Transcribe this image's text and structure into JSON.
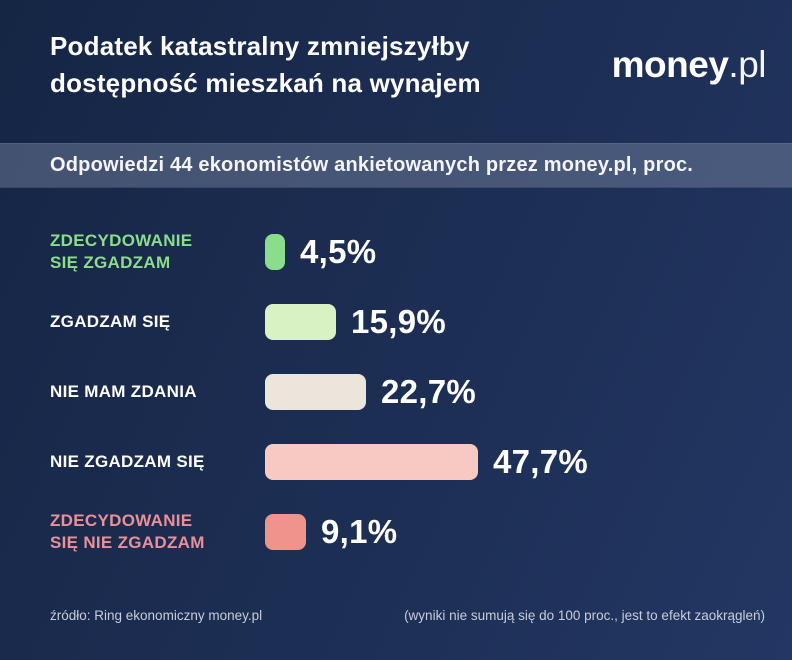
{
  "header": {
    "title": "Podatek katastralny zmniejszyłby dostępność mieszkań na wynajem",
    "logo": {
      "bold": "money",
      "light": ".pl"
    }
  },
  "subtitle": "Odpowiedzi 44 ekonomistów ankietowanych przez money.pl, proc.",
  "chart_data": {
    "type": "bar",
    "orientation": "horizontal",
    "title": "Podatek katastralny zmniejszyłby dostępność mieszkań na wynajem",
    "subtitle": "Odpowiedzi 44 ekonomistów ankietowanych przez money.pl, proc.",
    "unit": "proc.",
    "xlim": [
      0,
      50
    ],
    "grid": false,
    "legend": false,
    "categories": [
      "ZDECYDOWANIE SIĘ ZGADZAM",
      "ZGADZAM SIĘ",
      "NIE MAM ZDANIA",
      "NIE ZGADZAM SIĘ",
      "ZDECYDOWANIE SIĘ NIE ZGADZAM"
    ],
    "label_lines": [
      [
        "ZDECYDOWANIE",
        "SIĘ ZGADZAM"
      ],
      [
        "ZGADZAM SIĘ"
      ],
      [
        "NIE MAM ZDANIA"
      ],
      [
        "NIE ZGADZAM SIĘ"
      ],
      [
        "ZDECYDOWANIE",
        "SIĘ NIE ZGADZAM"
      ]
    ],
    "values": [
      4.5,
      15.9,
      22.7,
      47.7,
      9.1
    ],
    "value_labels": [
      "4,5%",
      "15,9%",
      "22,7%",
      "47,7%",
      "9,1%"
    ],
    "bar_colors": [
      "#8bdd8c",
      "#d9f2c3",
      "#ebe5db",
      "#f8c9c3",
      "#f0938d"
    ],
    "label_colors": [
      "#8bdd8c",
      "#ffffff",
      "#ffffff",
      "#ffffff",
      "#eb8f99"
    ]
  },
  "footer": {
    "source": "źródło: Ring ekonomiczny money.pl",
    "note": "(wyniki nie sumują się do 100 proc., jest to efekt zaokrągleń)"
  },
  "colors": {
    "background_dark": "#152544",
    "background_light": "#233764",
    "subtitle_bar": "rgba(142,154,182,0.38)",
    "text": "#ffffff",
    "footer_text": "#c7cdd9"
  }
}
